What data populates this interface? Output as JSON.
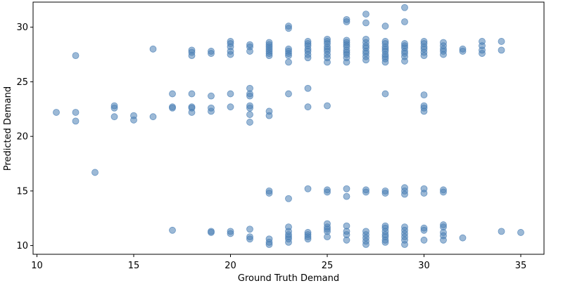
{
  "chart_data": {
    "type": "scatter",
    "title": "",
    "xlabel": "Ground Truth Demand",
    "ylabel": "Predicted Demand",
    "xlim": [
      9.8,
      36.2
    ],
    "ylim": [
      9.2,
      32.3
    ],
    "xticks": [
      10,
      15,
      20,
      25,
      30,
      35
    ],
    "yticks": [
      10,
      15,
      20,
      25,
      30
    ],
    "grid": false,
    "legend": "none",
    "marker_color": "#4a7fb5",
    "marker_alpha": 0.55,
    "points": [
      [
        11,
        22.2
      ],
      [
        12,
        27.4
      ],
      [
        12,
        22.2
      ],
      [
        12,
        21.4
      ],
      [
        13,
        16.7
      ],
      [
        14,
        22.8
      ],
      [
        14,
        22.6
      ],
      [
        14,
        21.8
      ],
      [
        15,
        21.9
      ],
      [
        15,
        21.5
      ],
      [
        16,
        28.0
      ],
      [
        16,
        21.8
      ],
      [
        17,
        23.9
      ],
      [
        17,
        22.7
      ],
      [
        17,
        22.6
      ],
      [
        17,
        11.4
      ],
      [
        18,
        27.9
      ],
      [
        18,
        27.7
      ],
      [
        18,
        27.4
      ],
      [
        18,
        23.9
      ],
      [
        18,
        22.7
      ],
      [
        18,
        22.6
      ],
      [
        18,
        22.2
      ],
      [
        19,
        27.8
      ],
      [
        19,
        27.6
      ],
      [
        19,
        23.7
      ],
      [
        19,
        22.6
      ],
      [
        19,
        22.3
      ],
      [
        19,
        11.3
      ],
      [
        19,
        11.2
      ],
      [
        20,
        28.7
      ],
      [
        20,
        28.5
      ],
      [
        20,
        28.2
      ],
      [
        20,
        27.8
      ],
      [
        20,
        27.5
      ],
      [
        20,
        23.9
      ],
      [
        20,
        22.7
      ],
      [
        20,
        11.3
      ],
      [
        20,
        11.1
      ],
      [
        21,
        28.4
      ],
      [
        21,
        28.2
      ],
      [
        21,
        27.8
      ],
      [
        21,
        24.4
      ],
      [
        21,
        23.9
      ],
      [
        21,
        23.7
      ],
      [
        21,
        22.8
      ],
      [
        21,
        22.6
      ],
      [
        21,
        22.0
      ],
      [
        21,
        21.3
      ],
      [
        21,
        11.5
      ],
      [
        21,
        10.8
      ],
      [
        21,
        10.6
      ],
      [
        22,
        28.6
      ],
      [
        22,
        28.4
      ],
      [
        22,
        28.2
      ],
      [
        22,
        28.0
      ],
      [
        22,
        27.8
      ],
      [
        22,
        27.6
      ],
      [
        22,
        27.4
      ],
      [
        22,
        22.3
      ],
      [
        22,
        21.9
      ],
      [
        22,
        15.0
      ],
      [
        22,
        14.8
      ],
      [
        22,
        10.6
      ],
      [
        22,
        10.3
      ],
      [
        22,
        10.1
      ],
      [
        23,
        30.1
      ],
      [
        23,
        29.9
      ],
      [
        23,
        28.0
      ],
      [
        23,
        27.8
      ],
      [
        23,
        27.6
      ],
      [
        23,
        27.4
      ],
      [
        23,
        26.8
      ],
      [
        23,
        23.9
      ],
      [
        23,
        14.3
      ],
      [
        23,
        11.7
      ],
      [
        23,
        11.3
      ],
      [
        23,
        11.0
      ],
      [
        23,
        10.8
      ],
      [
        23,
        10.6
      ],
      [
        23,
        10.3
      ],
      [
        24,
        28.7
      ],
      [
        24,
        28.5
      ],
      [
        24,
        28.3
      ],
      [
        24,
        28.0
      ],
      [
        24,
        27.8
      ],
      [
        24,
        27.5
      ],
      [
        24,
        27.2
      ],
      [
        24,
        24.4
      ],
      [
        24,
        22.7
      ],
      [
        24,
        15.2
      ],
      [
        24,
        11.2
      ],
      [
        24,
        11.0
      ],
      [
        24,
        10.8
      ],
      [
        24,
        10.6
      ],
      [
        25,
        28.9
      ],
      [
        25,
        28.7
      ],
      [
        25,
        28.5
      ],
      [
        25,
        28.2
      ],
      [
        25,
        28.0
      ],
      [
        25,
        27.8
      ],
      [
        25,
        27.5
      ],
      [
        25,
        27.2
      ],
      [
        25,
        26.8
      ],
      [
        25,
        22.8
      ],
      [
        25,
        15.1
      ],
      [
        25,
        14.9
      ],
      [
        25,
        12.0
      ],
      [
        25,
        11.7
      ],
      [
        25,
        11.5
      ],
      [
        25,
        11.3
      ],
      [
        25,
        10.8
      ],
      [
        26,
        30.7
      ],
      [
        26,
        30.5
      ],
      [
        26,
        28.8
      ],
      [
        26,
        28.6
      ],
      [
        26,
        28.4
      ],
      [
        26,
        28.2
      ],
      [
        26,
        27.9
      ],
      [
        26,
        27.7
      ],
      [
        26,
        27.5
      ],
      [
        26,
        27.2
      ],
      [
        26,
        26.8
      ],
      [
        26,
        15.2
      ],
      [
        26,
        14.5
      ],
      [
        26,
        11.8
      ],
      [
        26,
        11.3
      ],
      [
        26,
        11.0
      ],
      [
        26,
        10.5
      ],
      [
        27,
        31.2
      ],
      [
        27,
        30.4
      ],
      [
        27,
        28.9
      ],
      [
        27,
        28.6
      ],
      [
        27,
        28.3
      ],
      [
        27,
        28.1
      ],
      [
        27,
        27.8
      ],
      [
        27,
        27.6
      ],
      [
        27,
        27.3
      ],
      [
        27,
        27.0
      ],
      [
        27,
        15.1
      ],
      [
        27,
        14.9
      ],
      [
        27,
        11.3
      ],
      [
        27,
        11.0
      ],
      [
        27,
        10.7
      ],
      [
        27,
        10.4
      ],
      [
        27,
        10.1
      ],
      [
        28,
        30.1
      ],
      [
        28,
        28.7
      ],
      [
        28,
        28.5
      ],
      [
        28,
        28.2
      ],
      [
        28,
        28.0
      ],
      [
        28,
        27.8
      ],
      [
        28,
        27.5
      ],
      [
        28,
        27.3
      ],
      [
        28,
        27.1
      ],
      [
        28,
        26.8
      ],
      [
        28,
        23.9
      ],
      [
        28,
        15.0
      ],
      [
        28,
        14.8
      ],
      [
        28,
        11.8
      ],
      [
        28,
        11.6
      ],
      [
        28,
        11.3
      ],
      [
        28,
        11.0
      ],
      [
        28,
        10.8
      ],
      [
        28,
        10.5
      ],
      [
        28,
        10.3
      ],
      [
        29,
        31.8
      ],
      [
        29,
        30.5
      ],
      [
        29,
        28.5
      ],
      [
        29,
        28.3
      ],
      [
        29,
        28.1
      ],
      [
        29,
        27.8
      ],
      [
        29,
        27.6
      ],
      [
        29,
        27.3
      ],
      [
        29,
        26.9
      ],
      [
        29,
        15.3
      ],
      [
        29,
        15.0
      ],
      [
        29,
        14.7
      ],
      [
        29,
        11.7
      ],
      [
        29,
        11.4
      ],
      [
        29,
        11.1
      ],
      [
        29,
        10.8
      ],
      [
        29,
        10.5
      ],
      [
        29,
        10.1
      ],
      [
        30,
        28.7
      ],
      [
        30,
        28.5
      ],
      [
        30,
        28.2
      ],
      [
        30,
        28.0
      ],
      [
        30,
        27.7
      ],
      [
        30,
        27.4
      ],
      [
        30,
        23.8
      ],
      [
        30,
        22.8
      ],
      [
        30,
        22.6
      ],
      [
        30,
        22.3
      ],
      [
        30,
        15.2
      ],
      [
        30,
        14.8
      ],
      [
        30,
        11.6
      ],
      [
        30,
        11.4
      ],
      [
        30,
        10.5
      ],
      [
        31,
        28.6
      ],
      [
        31,
        28.3
      ],
      [
        31,
        28.0
      ],
      [
        31,
        27.8
      ],
      [
        31,
        27.5
      ],
      [
        31,
        15.1
      ],
      [
        31,
        14.9
      ],
      [
        31,
        11.9
      ],
      [
        31,
        11.7
      ],
      [
        31,
        11.2
      ],
      [
        31,
        10.9
      ],
      [
        31,
        10.5
      ],
      [
        32,
        28.0
      ],
      [
        32,
        27.8
      ],
      [
        32,
        10.7
      ],
      [
        33,
        28.7
      ],
      [
        33,
        28.3
      ],
      [
        33,
        27.9
      ],
      [
        33,
        27.6
      ],
      [
        34,
        28.7
      ],
      [
        34,
        27.9
      ],
      [
        34,
        11.3
      ],
      [
        35,
        11.2
      ]
    ]
  }
}
